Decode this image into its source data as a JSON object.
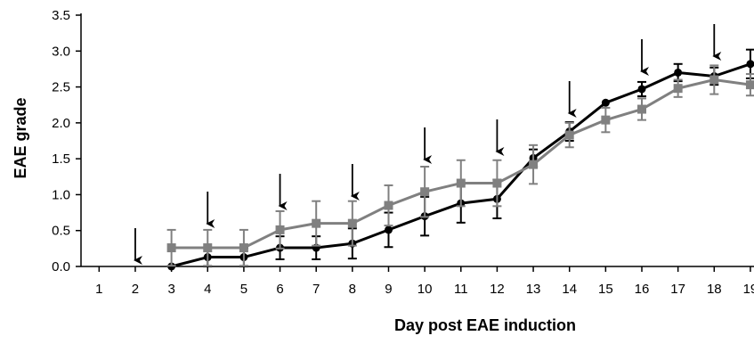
{
  "chart_data": {
    "type": "line",
    "title": "",
    "xlabel": "Day post EAE induction",
    "ylabel": "EAE grade",
    "xlim": [
      0.5,
      19.1
    ],
    "ylim": [
      0,
      3.5
    ],
    "x_ticks": [
      "1",
      "2",
      "3",
      "4",
      "5",
      "6",
      "7",
      "8",
      "9",
      "10",
      "11",
      "12",
      "13",
      "14",
      "15",
      "16",
      "17",
      "18",
      "19"
    ],
    "y_ticks": [
      "0.0",
      "0.5",
      "1.0",
      "1.5",
      "2.0",
      "2.5",
      "3.0",
      "3.5"
    ],
    "grid": false,
    "legend": "none",
    "series": [
      {
        "color": "#000000",
        "marker": "circle",
        "x": [
          3,
          4,
          5,
          6,
          7,
          8,
          9,
          10,
          11,
          12,
          13,
          14,
          15,
          16,
          17,
          18,
          19
        ],
        "values": [
          0.0,
          0.13,
          0.13,
          0.26,
          0.26,
          0.32,
          0.51,
          0.7,
          0.88,
          0.94,
          1.51,
          1.88,
          2.28,
          2.47,
          2.7,
          2.65,
          2.82
        ],
        "errors": [
          0.0,
          0.13,
          0.13,
          0.16,
          0.16,
          0.21,
          0.24,
          0.27,
          0.27,
          0.27,
          0.12,
          0.13,
          0.0,
          0.1,
          0.12,
          0.12,
          0.2
        ]
      },
      {
        "color": "#808080",
        "marker": "square",
        "x": [
          3,
          4,
          5,
          6,
          7,
          8,
          9,
          10,
          11,
          12,
          13,
          14,
          15,
          16,
          17,
          18,
          19
        ],
        "values": [
          0.26,
          0.26,
          0.26,
          0.51,
          0.6,
          0.6,
          0.85,
          1.04,
          1.16,
          1.16,
          1.42,
          1.83,
          2.04,
          2.19,
          2.48,
          2.6,
          2.53
        ],
        "errors": [
          0.25,
          0.25,
          0.25,
          0.26,
          0.31,
          0.31,
          0.28,
          0.35,
          0.32,
          0.32,
          0.27,
          0.17,
          0.17,
          0.15,
          0.12,
          0.2,
          0.15
        ]
      }
    ],
    "annotations": {
      "arrow_days": [
        2,
        4,
        6,
        8,
        10,
        12,
        14,
        16,
        18
      ]
    }
  }
}
